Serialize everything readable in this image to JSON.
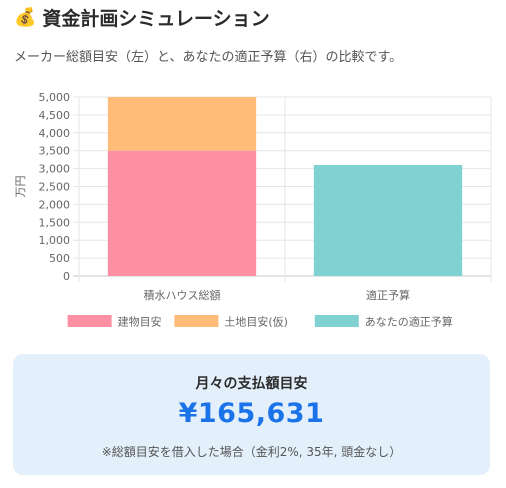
{
  "header": {
    "icon": "money-bag-icon",
    "icon_glyph": "💰",
    "title": "資金計画シミュレーション",
    "subtitle": "メーカー総額目安（左）と、あなたの適正予算（右）の比較です。"
  },
  "chart_data": {
    "type": "bar",
    "stacked": true,
    "categories": [
      "積水ハウス総額",
      "適正予算"
    ],
    "series": [
      {
        "name": "建物目安",
        "values": [
          3500,
          0
        ],
        "color": "#ff8fa3"
      },
      {
        "name": "土地目安(仮)",
        "values": [
          1500,
          0
        ],
        "color": "#ffbb78"
      },
      {
        "name": "あなたの適正予算",
        "values": [
          0,
          3100
        ],
        "color": "#7fd1d2"
      }
    ],
    "ylabel": "万円",
    "ylim": [
      0,
      5000
    ],
    "yticks": [
      0,
      500,
      1000,
      1500,
      2000,
      2500,
      3000,
      3500,
      4000,
      4500,
      5000
    ],
    "ytick_labels": [
      "0",
      "500",
      "1,000",
      "1,500",
      "2,000",
      "2,500",
      "3,000",
      "3,500",
      "4,000",
      "4,500",
      "5,000"
    ],
    "grid": true,
    "legend_position": "bottom"
  },
  "summary": {
    "title": "月々の支払額目安",
    "amount": "¥165,631",
    "note": "※総額目安を借入した場合（金利2%, 35年, 頭金なし）"
  }
}
